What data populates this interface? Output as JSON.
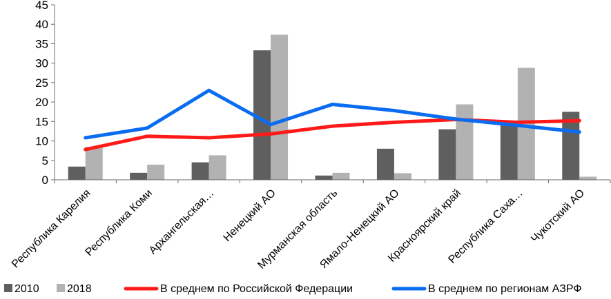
{
  "chart_data": {
    "type": "bar",
    "title": "",
    "xlabel": "",
    "ylabel": "",
    "categories": [
      "Республика Карелия",
      "Республика Коми",
      "Архангельская…",
      "Ненецкий АО",
      "Мурманская область",
      "Ямало-Ненецкий АО",
      "Красноярский край",
      "Республика Саха…",
      "Чукотский АО"
    ],
    "ylim": [
      0,
      45
    ],
    "yticks": [
      0,
      5,
      10,
      15,
      20,
      25,
      30,
      35,
      40,
      45
    ],
    "bar_series": [
      {
        "name": "2010",
        "color": "#5f5f5f",
        "values": [
          3.4,
          1.8,
          4.5,
          33.3,
          1.1,
          8.0,
          13.0,
          15.0,
          17.5
        ]
      },
      {
        "name": "2018",
        "color": "#b2b2b2",
        "values": [
          8.5,
          3.9,
          6.3,
          37.3,
          1.8,
          1.7,
          19.4,
          28.8,
          0.8
        ]
      }
    ],
    "line_series": [
      {
        "name": "В среднем по Российской Федерации",
        "color": "#ff1a1a",
        "values": [
          7.8,
          11.2,
          10.8,
          11.8,
          13.8,
          14.8,
          15.5,
          14.8,
          15.2
        ]
      },
      {
        "name": "В среднем по регионам АЗРФ",
        "color": "#0a6cf0",
        "values": [
          10.8,
          13.3,
          23.0,
          14.2,
          19.4,
          17.8,
          15.6,
          14.0,
          12.3
        ]
      }
    ],
    "grid": false,
    "legend_position": "bottom"
  }
}
